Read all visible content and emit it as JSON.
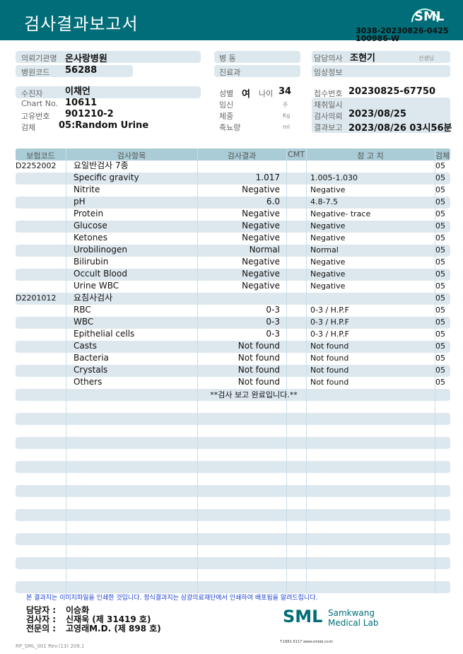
{
  "header": {
    "title": "검사결과보고서",
    "logo": "SML",
    "doc_no_line1": "3038-20230826-0425",
    "doc_no_line2": "100986-W"
  },
  "info": {
    "institution_label": "의뢰기관명",
    "institution": "온사랑병원",
    "hospital_code_label": "병원코드",
    "hospital_code": "56288",
    "ward_label": "병  동",
    "dept_label": "진료과",
    "doctor_label": "담당의사",
    "doctor": "조현기",
    "doctor_suffix": "선생님",
    "clinical_label": "임상정보",
    "patient_label": "수진자",
    "patient": "이채언",
    "chart_label": "Chart No.",
    "chart": "10611",
    "id_label": "고유번호",
    "id": "901210-2",
    "specimen_label": "검체",
    "specimen": "05:Random Urine",
    "sex_label": "성별",
    "sex": "여",
    "age_label": "나이",
    "age": "34",
    "pregnancy_label": "임신",
    "pregnancy_unit": "주",
    "weight_label": "체중",
    "weight_unit": "Kg",
    "urine_label": "축뇨량",
    "urine_unit": "ml",
    "receipt_label": "접수번호",
    "receipt": "20230825-67750",
    "collect_label": "채취일시",
    "request_label": "검사의뢰",
    "request": "2023/08/25",
    "report_label": "결과보고",
    "report": "2023/08/26 03시56분"
  },
  "table": {
    "headers": [
      "보험코드",
      "검사항목",
      "검사결과",
      "CMT",
      "참 고 치",
      "검체"
    ],
    "rows": [
      {
        "code": "D2252002",
        "item": "요일반검사 7종",
        "result": "",
        "ref": "",
        "spc": "05"
      },
      {
        "code": "",
        "item": "Specific gravity",
        "result": "1.017",
        "ref": "1.005-1.030",
        "spc": "05"
      },
      {
        "code": "",
        "item": "Nitrite",
        "result": "Negative",
        "ref": "Negative",
        "spc": "05"
      },
      {
        "code": "",
        "item": "pH",
        "result": "6.0",
        "ref": "4.8-7.5",
        "spc": "05"
      },
      {
        "code": "",
        "item": "Protein",
        "result": "Negative",
        "ref": "Negative- trace",
        "spc": "05"
      },
      {
        "code": "",
        "item": "Glucose",
        "result": "Negative",
        "ref": "Negative",
        "spc": "05"
      },
      {
        "code": "",
        "item": "Ketones",
        "result": "Negative",
        "ref": "Negative",
        "spc": "05"
      },
      {
        "code": "",
        "item": "Urobilinogen",
        "result": "Normal",
        "ref": "Normal",
        "spc": "05"
      },
      {
        "code": "",
        "item": "Bilirubin",
        "result": "Negative",
        "ref": "Negative",
        "spc": "05"
      },
      {
        "code": "",
        "item": "Occult Blood",
        "result": "Negative",
        "ref": "Negative",
        "spc": "05"
      },
      {
        "code": "",
        "item": "Urine WBC",
        "result": "Negative",
        "ref": "Negative",
        "spc": "05"
      },
      {
        "code": "D2201012",
        "item": "요침사검사",
        "result": "",
        "ref": "",
        "spc": "05"
      },
      {
        "code": "",
        "item": "RBC",
        "result": "0-3",
        "ref": "0-3 / H.P.F",
        "spc": "05"
      },
      {
        "code": "",
        "item": "WBC",
        "result": "0-3",
        "ref": "0-3 / H.P.F",
        "spc": "05"
      },
      {
        "code": "",
        "item": "Epithelial cells",
        "result": "0-3",
        "ref": "0-3 / H.P.F",
        "spc": "05"
      },
      {
        "code": "",
        "item": "Casts",
        "result": "Not found",
        "ref": "Not found",
        "spc": "05"
      },
      {
        "code": "",
        "item": "Bacteria",
        "result": "Not found",
        "ref": "Not found",
        "spc": "05"
      },
      {
        "code": "",
        "item": "Crystals",
        "result": "Not found",
        "ref": "Not found",
        "spc": "05"
      },
      {
        "code": "",
        "item": "Others",
        "result": "Not found",
        "ref": "Not found",
        "spc": "05"
      }
    ],
    "completion": "**검사  보고  완료입니다.**"
  },
  "footer": {
    "notice": "본 결과지는 이미지파일을 인쇄한 것입니다. 정식결과지는 삼광의료재단에서 인쇄하여 배포됨을 알려드립니다.",
    "manager_label": "담당자 :",
    "manager": "이승화",
    "tester_label": "검사자 :",
    "tester": "신재욱 (제 31419 호)",
    "specialist_label": "전문의 :",
    "specialist": "고영래M.D. (제 898 호)",
    "lab_name_1": "Samkwang",
    "lab_name_2": "Medical Lab",
    "lab_logo": "SML",
    "contact": "T.1661-5117 www.smlab.co.kr",
    "form_code": "RP_SML_001 Rev.(13) 209.1",
    "brand_color": "#006d78"
  }
}
